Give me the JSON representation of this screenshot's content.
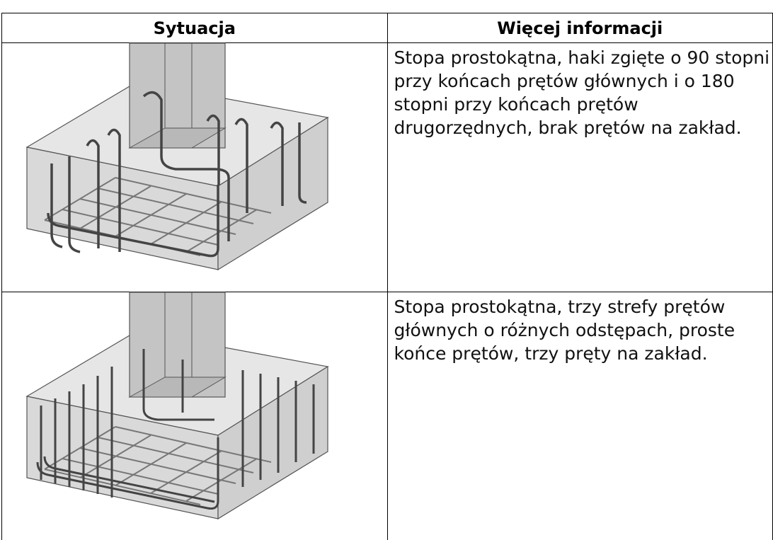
{
  "table": {
    "headers": [
      "Sytuacja",
      "Więcej informacji"
    ],
    "rows": [
      {
        "description": "Stopa prostokątna, haki zgięte o 90 stopni przy końcach prętów głównych i o 180 stopni przy końcach prętów drugorzędnych, brak prętów na zakład."
      },
      {
        "description": "Stopa prostokątna, trzy strefy prętów głównych o różnych odstępach, proste końce prętów, trzy pręty na zakład."
      }
    ]
  }
}
